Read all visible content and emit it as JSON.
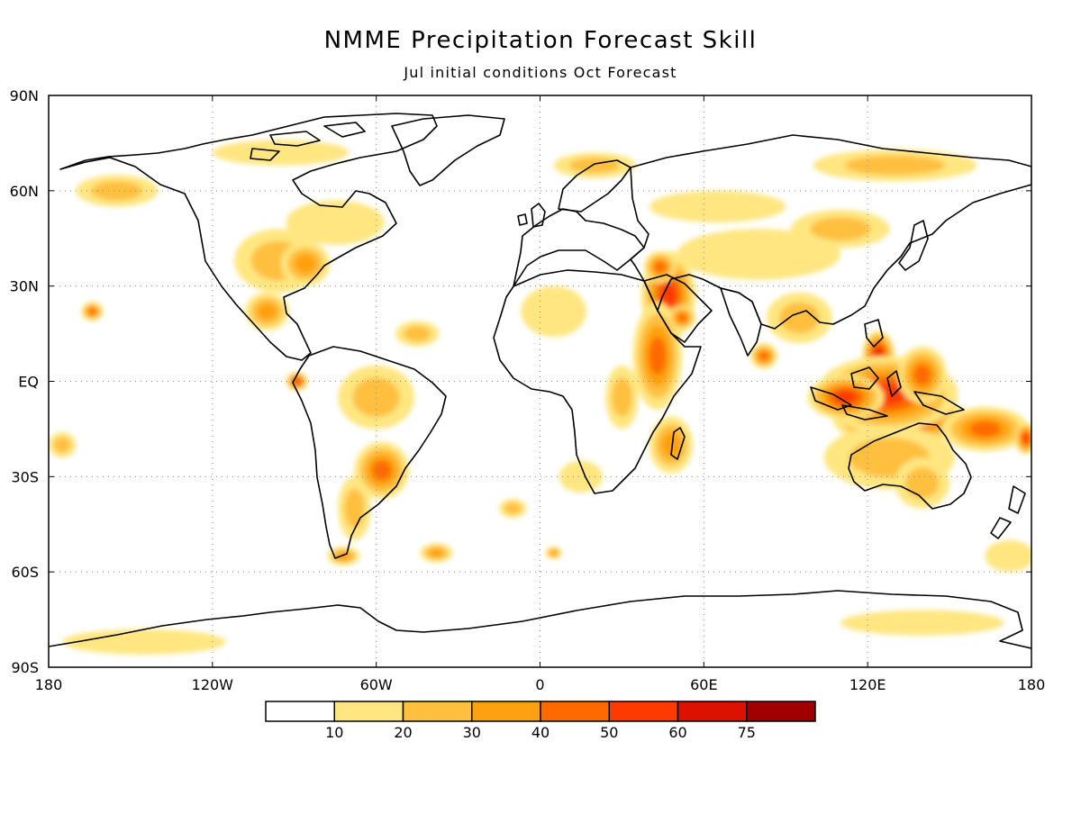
{
  "title": "NMME Precipitation Forecast Skill",
  "subtitle": "Jul initial conditions  Oct Forecast",
  "x_ticks": [
    {
      "lon": -180,
      "label": "180"
    },
    {
      "lon": -120,
      "label": "120W"
    },
    {
      "lon": -60,
      "label": "60W"
    },
    {
      "lon": 0,
      "label": "0"
    },
    {
      "lon": 60,
      "label": "60E"
    },
    {
      "lon": 120,
      "label": "120E"
    },
    {
      "lon": 180,
      "label": "180"
    }
  ],
  "y_ticks": [
    {
      "lat": 90,
      "label": "90N"
    },
    {
      "lat": 60,
      "label": "60N"
    },
    {
      "lat": 30,
      "label": "30N"
    },
    {
      "lat": 0,
      "label": "EQ"
    },
    {
      "lat": -30,
      "label": "30S"
    },
    {
      "lat": -60,
      "label": "60S"
    },
    {
      "lat": -90,
      "label": "90S"
    }
  ],
  "colorbar": {
    "bins": [
      {
        "color": "#ffffff"
      },
      {
        "color": "#ffe680"
      },
      {
        "color": "#ffc040"
      },
      {
        "color": "#ffa010"
      },
      {
        "color": "#ff6a00"
      },
      {
        "color": "#ff3a00"
      },
      {
        "color": "#dd1100"
      },
      {
        "color": "#a00000"
      }
    ],
    "labels": [
      "10",
      "20",
      "30",
      "40",
      "50",
      "60",
      "75"
    ]
  },
  "skill_regions": [
    {
      "lon": 131,
      "lat": -11,
      "rlon": 24,
      "rlat": 10,
      "level": 7
    },
    {
      "lon": 124,
      "lat": 8,
      "rlon": 6,
      "rlat": 8,
      "level": 6
    },
    {
      "lon": 127,
      "lat": -4,
      "rlon": 26,
      "rlat": 12,
      "level": 5
    },
    {
      "lon": 112,
      "lat": -5,
      "rlon": 14,
      "rlat": 7,
      "level": 5
    },
    {
      "lon": 140,
      "lat": 2,
      "rlon": 9,
      "rlat": 9,
      "level": 4
    },
    {
      "lon": 163,
      "lat": -15,
      "rlon": 16,
      "rlat": 7,
      "level": 4
    },
    {
      "lon": 178,
      "lat": -18,
      "rlon": 4,
      "rlat": 5,
      "level": 5
    },
    {
      "lon": 128,
      "lat": -24,
      "rlon": 24,
      "rlat": 10,
      "level": 2
    },
    {
      "lon": 140,
      "lat": -32,
      "rlon": 10,
      "rlat": 8,
      "level": 2
    },
    {
      "lon": 172,
      "lat": -55,
      "rlon": 9,
      "rlat": 5,
      "level": 1
    },
    {
      "lon": 47,
      "lat": 27,
      "rlon": 10,
      "rlat": 14,
      "level": 5
    },
    {
      "lon": 44,
      "lat": 36,
      "rlon": 6,
      "rlat": 5,
      "level": 4
    },
    {
      "lon": 43,
      "lat": 8,
      "rlon": 9,
      "rlat": 17,
      "level": 4
    },
    {
      "lon": 52,
      "lat": 20,
      "rlon": 5,
      "rlat": 4,
      "level": 4
    },
    {
      "lon": 48,
      "lat": -20,
      "rlon": 8,
      "rlat": 9,
      "level": 3
    },
    {
      "lon": 82,
      "lat": 8,
      "rlon": 5,
      "rlat": 4,
      "level": 4
    },
    {
      "lon": 95,
      "lat": 20,
      "rlon": 12,
      "rlat": 8,
      "level": 2
    },
    {
      "lon": 80,
      "lat": 40,
      "rlon": 30,
      "rlat": 8,
      "level": 1
    },
    {
      "lon": 110,
      "lat": 48,
      "rlon": 18,
      "rlat": 6,
      "level": 2
    },
    {
      "lon": 130,
      "lat": 68,
      "rlon": 30,
      "rlat": 5,
      "level": 2
    },
    {
      "lon": 20,
      "lat": 68,
      "rlon": 15,
      "rlat": 4,
      "level": 2
    },
    {
      "lon": 65,
      "lat": 55,
      "rlon": 25,
      "rlat": 5,
      "level": 1
    },
    {
      "lon": 5,
      "lat": 22,
      "rlon": 12,
      "rlat": 8,
      "level": 1
    },
    {
      "lon": 30,
      "lat": -5,
      "rlon": 6,
      "rlat": 10,
      "level": 2
    },
    {
      "lon": 15,
      "lat": -30,
      "rlon": 8,
      "rlat": 5,
      "level": 1
    },
    {
      "lon": -96,
      "lat": 38,
      "rlon": 16,
      "rlat": 10,
      "level": 2
    },
    {
      "lon": -86,
      "lat": 37,
      "rlon": 9,
      "rlat": 7,
      "level": 3
    },
    {
      "lon": -100,
      "lat": 22,
      "rlon": 8,
      "rlat": 6,
      "level": 3
    },
    {
      "lon": -75,
      "lat": 50,
      "rlon": 18,
      "rlat": 7,
      "level": 1
    },
    {
      "lon": -155,
      "lat": 60,
      "rlon": 15,
      "rlat": 5,
      "level": 2
    },
    {
      "lon": -95,
      "lat": 72,
      "rlon": 25,
      "rlat": 4,
      "level": 1
    },
    {
      "lon": -164,
      "lat": 22,
      "rlon": 4,
      "rlat": 3,
      "level": 4
    },
    {
      "lon": -89,
      "lat": 0,
      "rlon": 4,
      "rlat": 3,
      "level": 5
    },
    {
      "lon": -60,
      "lat": -5,
      "rlon": 14,
      "rlat": 10,
      "level": 2
    },
    {
      "lon": -58,
      "lat": -28,
      "rlon": 10,
      "rlat": 9,
      "level": 4
    },
    {
      "lon": -68,
      "lat": -40,
      "rlon": 6,
      "rlat": 10,
      "level": 2
    },
    {
      "lon": -72,
      "lat": -55,
      "rlon": 6,
      "rlat": 3,
      "level": 3
    },
    {
      "lon": -45,
      "lat": 15,
      "rlon": 8,
      "rlat": 4,
      "level": 2
    },
    {
      "lon": -175,
      "lat": -20,
      "rlon": 5,
      "rlat": 4,
      "level": 2
    },
    {
      "lon": -38,
      "lat": -54,
      "rlon": 6,
      "rlat": 3,
      "level": 3
    },
    {
      "lon": 5,
      "lat": -54,
      "rlon": 3,
      "rlat": 2,
      "level": 3
    },
    {
      "lon": -10,
      "lat": -40,
      "rlon": 5,
      "rlat": 3,
      "level": 2
    },
    {
      "lon": -145,
      "lat": -82,
      "rlon": 30,
      "rlat": 4,
      "level": 1
    },
    {
      "lon": 140,
      "lat": -76,
      "rlon": 30,
      "rlat": 4,
      "level": 1
    }
  ]
}
